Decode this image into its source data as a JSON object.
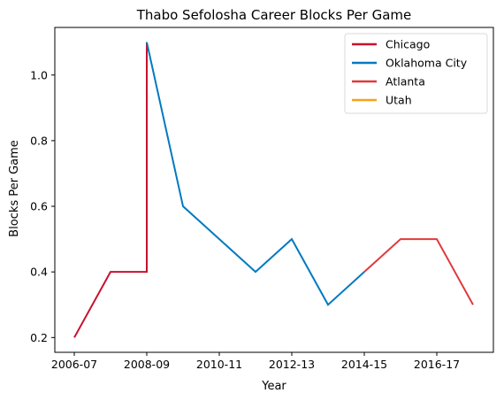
{
  "chart_data": {
    "type": "line",
    "title": "Thabo Sefolosha Career Blocks Per Game",
    "xlabel": "Year",
    "ylabel": "Blocks Per Game",
    "seasons": [
      "2006-07",
      "2007-08",
      "2008-09",
      "2009-10",
      "2010-11",
      "2011-12",
      "2012-13",
      "2013-14",
      "2014-15",
      "2015-16",
      "2016-17",
      "2017-18"
    ],
    "x_ticks": [
      "2006-07",
      "2008-09",
      "2010-11",
      "2012-13",
      "2014-15",
      "2016-17"
    ],
    "y_ticks": [
      0.2,
      0.4,
      0.6,
      0.8,
      1.0
    ],
    "ylim": [
      0.155,
      1.145
    ],
    "legend_position": "top-right",
    "grid": false,
    "series": [
      {
        "name": "Chicago",
        "color": "#c8102e",
        "points": [
          [
            "2006-07",
            0.2
          ],
          [
            "2007-08",
            0.4
          ],
          [
            "2008-09",
            0.4
          ],
          [
            "2008-09",
            1.1
          ]
        ]
      },
      {
        "name": "Oklahoma City",
        "color": "#007ac1",
        "points": [
          [
            "2008-09",
            1.1
          ],
          [
            "2009-10",
            0.6
          ],
          [
            "2010-11",
            0.5
          ],
          [
            "2011-12",
            0.4
          ],
          [
            "2012-13",
            0.5
          ],
          [
            "2013-14",
            0.3
          ],
          [
            "2014-15",
            0.4
          ]
        ]
      },
      {
        "name": "Atlanta",
        "color": "#e03a3e",
        "points": [
          [
            "2014-15",
            0.4
          ],
          [
            "2015-16",
            0.5
          ],
          [
            "2016-17",
            0.5
          ],
          [
            "2017-18",
            0.3
          ]
        ]
      },
      {
        "name": "Utah",
        "color": "#f9a01b",
        "points": []
      }
    ]
  }
}
